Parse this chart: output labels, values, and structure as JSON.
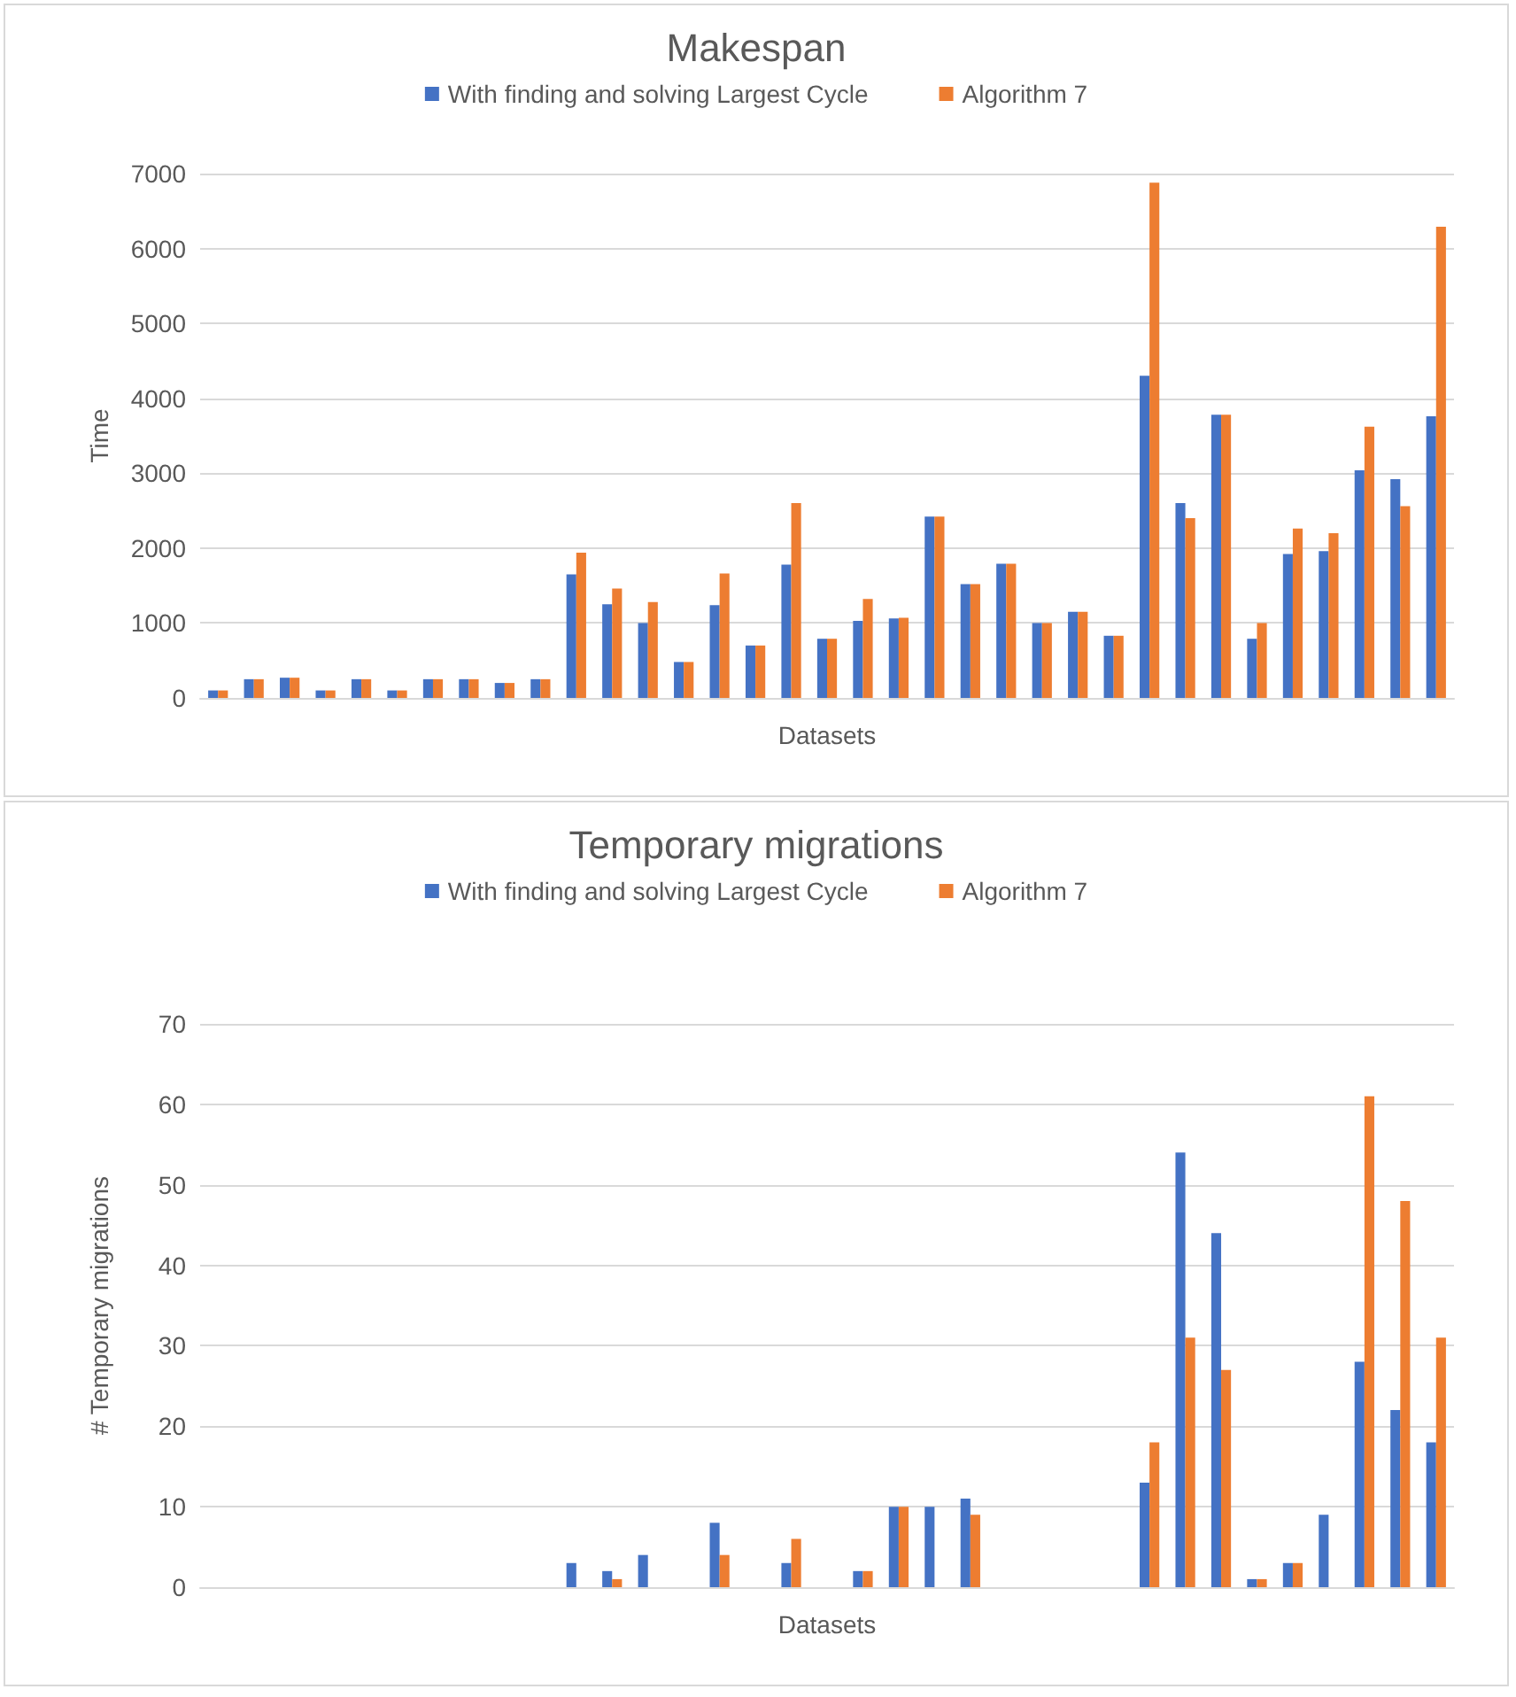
{
  "chart_data": [
    {
      "type": "bar",
      "title": "Makespan",
      "xlabel": "Datasets",
      "ylabel": "Time",
      "categories": [
        null,
        null,
        null,
        null,
        null,
        null,
        null,
        null,
        null,
        null,
        null,
        null,
        null,
        null,
        null,
        null,
        null,
        null,
        null,
        null,
        null,
        null,
        null,
        null,
        null,
        null,
        null,
        null,
        null,
        null,
        null,
        null,
        null,
        null,
        null
      ],
      "series": [
        {
          "name": "With finding and solving Largest Cycle",
          "color": "#4472c4",
          "values": [
            100,
            250,
            270,
            100,
            250,
            100,
            250,
            250,
            200,
            250,
            1650,
            1250,
            1000,
            480,
            1240,
            700,
            1780,
            790,
            1030,
            1060,
            2420,
            1520,
            1790,
            1000,
            1150,
            830,
            4300,
            2600,
            3780,
            790,
            1920,
            1960,
            3040,
            2920,
            3760
          ]
        },
        {
          "name": "Algorithm 7",
          "color": "#ed7d31",
          "values": [
            100,
            250,
            270,
            100,
            250,
            100,
            250,
            250,
            200,
            250,
            1940,
            1460,
            1280,
            480,
            1660,
            700,
            2600,
            790,
            1320,
            1070,
            2420,
            1520,
            1790,
            1000,
            1150,
            830,
            6880,
            2400,
            3780,
            1000,
            2260,
            2200,
            3620,
            2560,
            6290
          ]
        }
      ],
      "ylim": [
        0,
        7000
      ],
      "yticks": [
        0,
        1000,
        2000,
        3000,
        4000,
        5000,
        6000,
        7000
      ],
      "grid": "y",
      "legend": "top"
    },
    {
      "type": "bar",
      "title": "Temporary migrations",
      "xlabel": "Datasets",
      "ylabel": "# Temporary migrations",
      "categories": [
        null,
        null,
        null,
        null,
        null,
        null,
        null,
        null,
        null,
        null,
        null,
        null,
        null,
        null,
        null,
        null,
        null,
        null,
        null,
        null,
        null,
        null,
        null,
        null,
        null,
        null,
        null,
        null,
        null,
        null,
        null,
        null,
        null,
        null,
        null
      ],
      "series": [
        {
          "name": "With finding and solving Largest Cycle",
          "color": "#4472c4",
          "values": [
            0,
            0,
            0,
            0,
            0,
            0,
            0,
            0,
            0,
            0,
            3,
            2,
            4,
            0,
            8,
            0,
            3,
            0,
            2,
            10,
            10,
            11,
            0,
            0,
            0,
            0,
            13,
            54,
            44,
            1,
            3,
            9,
            28,
            22,
            18
          ]
        },
        {
          "name": "Algorithm 7",
          "color": "#ed7d31",
          "values": [
            0,
            0,
            0,
            0,
            0,
            0,
            0,
            0,
            0,
            0,
            0,
            1,
            0,
            0,
            4,
            0,
            6,
            0,
            2,
            10,
            0,
            9,
            0,
            0,
            0,
            0,
            18,
            31,
            27,
            1,
            3,
            0,
            61,
            48,
            31
          ]
        }
      ],
      "ylim": [
        0,
        70
      ],
      "yticks": [
        0,
        10,
        20,
        30,
        40,
        50,
        60,
        70
      ],
      "grid": "y",
      "legend": "top"
    }
  ]
}
